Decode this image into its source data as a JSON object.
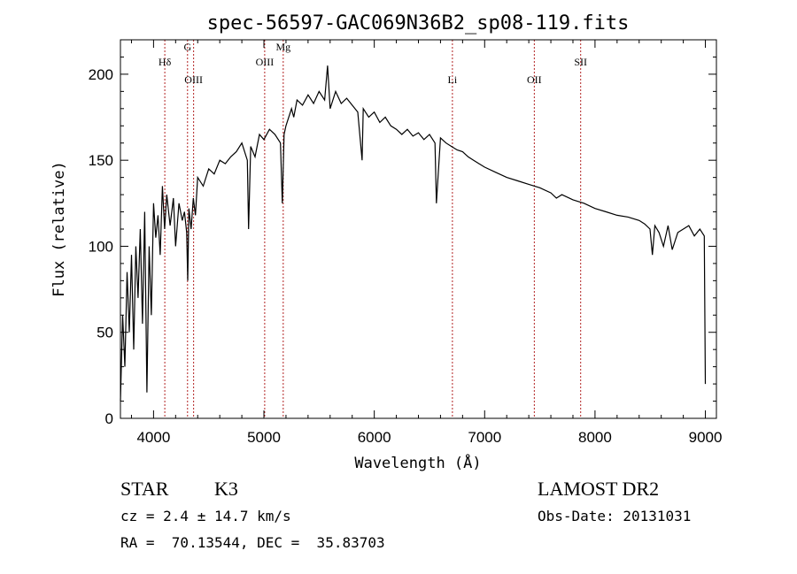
{
  "chart_data": {
    "type": "line",
    "title": "spec-56597-GAC069N36B2_sp08-119.fits",
    "xlabel": "Wavelength (Å)",
    "ylabel": "Flux (relative)",
    "xlim": [
      3700,
      9100
    ],
    "ylim": [
      0,
      220
    ],
    "xticks": [
      4000,
      5000,
      6000,
      7000,
      8000,
      9000
    ],
    "xtick_labels": [
      "4000",
      "5000",
      "6000",
      "7000",
      "8000",
      "9000"
    ],
    "yticks": [
      0,
      50,
      100,
      150,
      200
    ],
    "ytick_labels": [
      "0",
      "50",
      "100",
      "150",
      "200"
    ],
    "grid": false,
    "series": [
      {
        "x": [
          3700,
          3720,
          3740,
          3760,
          3780,
          3800,
          3820,
          3840,
          3860,
          3880,
          3900,
          3920,
          3940,
          3960,
          3980,
          4000,
          4020,
          4040,
          4060,
          4080,
          4100,
          4120,
          4150,
          4180,
          4200,
          4230,
          4260,
          4280,
          4300,
          4310,
          4320,
          4340,
          4360,
          4380,
          4400,
          4450,
          4500,
          4550,
          4600,
          4650,
          4700,
          4750,
          4800,
          4850,
          4861,
          4880,
          4920,
          4960,
          5000,
          5050,
          5100,
          5150,
          5167,
          5183,
          5200,
          5250,
          5270,
          5300,
          5350,
          5400,
          5450,
          5500,
          5550,
          5577,
          5600,
          5650,
          5700,
          5750,
          5800,
          5850,
          5890,
          5900,
          5950,
          6000,
          6050,
          6100,
          6150,
          6200,
          6250,
          6300,
          6350,
          6400,
          6450,
          6500,
          6550,
          6563,
          6600,
          6650,
          6700,
          6750,
          6800,
          6850,
          6900,
          6950,
          7000,
          7100,
          7200,
          7300,
          7400,
          7500,
          7600,
          7650,
          7700,
          7800,
          7900,
          8000,
          8100,
          8200,
          8300,
          8400,
          8450,
          8498,
          8520,
          8542,
          8580,
          8620,
          8662,
          8700,
          8750,
          8800,
          8850,
          8900,
          8950,
          8990,
          9000
        ],
        "y": [
          10,
          60,
          30,
          85,
          50,
          95,
          40,
          100,
          70,
          110,
          55,
          120,
          15,
          100,
          60,
          125,
          105,
          118,
          95,
          135,
          110,
          130,
          112,
          128,
          100,
          125,
          115,
          120,
          108,
          80,
          122,
          110,
          128,
          118,
          140,
          135,
          145,
          142,
          150,
          148,
          152,
          155,
          160,
          150,
          110,
          158,
          152,
          165,
          162,
          168,
          165,
          160,
          125,
          165,
          170,
          180,
          175,
          185,
          182,
          188,
          183,
          190,
          185,
          205,
          180,
          190,
          183,
          186,
          182,
          178,
          150,
          180,
          175,
          178,
          172,
          175,
          170,
          168,
          165,
          168,
          164,
          166,
          162,
          165,
          160,
          125,
          163,
          160,
          158,
          156,
          155,
          152,
          150,
          148,
          146,
          143,
          140,
          138,
          136,
          134,
          131,
          128,
          130,
          127,
          125,
          122,
          120,
          118,
          117,
          115,
          113,
          110,
          95,
          112,
          108,
          100,
          112,
          98,
          108,
          110,
          112,
          106,
          110,
          106,
          20
        ]
      }
    ],
    "annotations": [
      {
        "label": "Hδ",
        "x": 4102
      },
      {
        "label": "G",
        "x": 4308
      },
      {
        "label": "OIII",
        "x": 4363
      },
      {
        "label": "OIII",
        "x": 5007
      },
      {
        "label": "Mg",
        "x": 5175
      },
      {
        "label": "Li",
        "x": 6708
      },
      {
        "label": "OII",
        "x": 7450
      },
      {
        "label": "SII",
        "x": 7870
      }
    ]
  },
  "info": {
    "object_class": "STAR",
    "subclass": "K3",
    "survey": "LAMOST DR2",
    "cz": "cz = 2.4 ± 14.7 km/s",
    "obs_date": "Obs-Date: 20131031",
    "coords": "RA =  70.13544, DEC =  35.83703"
  },
  "colors": {
    "line": "#000000",
    "marker": "#b22222",
    "axes": "#000000",
    "background": "#ffffff"
  }
}
